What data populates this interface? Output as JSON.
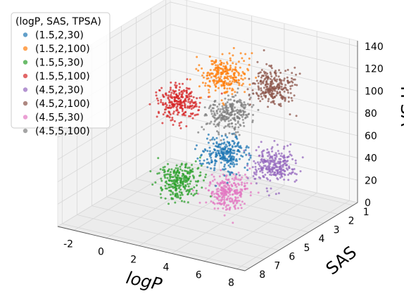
{
  "chart_data": {
    "type": "scatter3d",
    "title": "",
    "legend": {
      "title": "(logP, SAS, TPSA)",
      "placement": "top-left"
    },
    "axes": {
      "x": {
        "label": "logP",
        "range": [
          -3,
          8.5
        ],
        "ticks": [
          "-2",
          "0",
          "2",
          "4",
          "6",
          "8"
        ],
        "tick_values": [
          -2,
          0,
          2,
          4,
          6,
          8
        ]
      },
      "y": {
        "label": "SAS",
        "range": [
          0.7,
          8.3
        ],
        "ticks": [
          "1",
          "2",
          "3",
          "4",
          "5",
          "6",
          "7",
          "8"
        ],
        "tick_values": [
          1,
          2,
          3,
          4,
          5,
          6,
          7,
          8
        ]
      },
      "z": {
        "label": "TPSA",
        "range": [
          0,
          145
        ],
        "ticks": [
          "0",
          "20",
          "40",
          "60",
          "80",
          "100",
          "120",
          "140"
        ],
        "tick_values": [
          0,
          20,
          40,
          60,
          80,
          100,
          120,
          140
        ]
      }
    },
    "grid": true,
    "series": [
      {
        "name": "(1.5,2,30)",
        "center": [
          1.5,
          2,
          30
        ],
        "color": "#1f77b4"
      },
      {
        "name": "(1.5,2,100)",
        "center": [
          1.5,
          2,
          100
        ],
        "color": "#ff7f0e"
      },
      {
        "name": "(1.5,5,30)",
        "center": [
          1.5,
          5,
          30
        ],
        "color": "#2ca02c"
      },
      {
        "name": "(1.5,5,100)",
        "center": [
          1.5,
          5,
          100
        ],
        "color": "#d62728"
      },
      {
        "name": "(4.5,2,30)",
        "center": [
          4.5,
          2,
          30
        ],
        "color": "#9467bd"
      },
      {
        "name": "(4.5,2,100)",
        "center": [
          4.5,
          2,
          100
        ],
        "color": "#8c564b"
      },
      {
        "name": "(4.5,5,30)",
        "center": [
          4.5,
          5,
          30
        ],
        "color": "#e377c2"
      },
      {
        "name": "(4.5,5,100)",
        "center": [
          4.5,
          5,
          100
        ],
        "color": "#7f7f7f"
      }
    ]
  }
}
